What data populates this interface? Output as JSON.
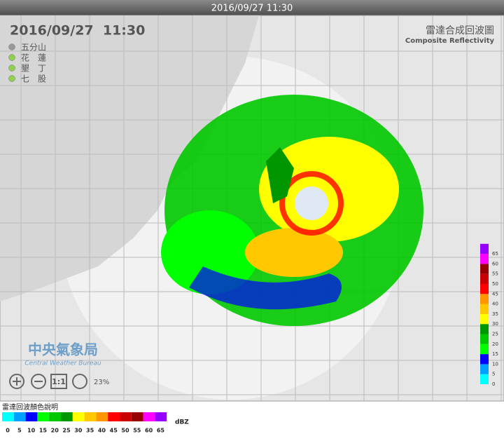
{
  "header": {
    "timestamp": "2016/09/27 11:30"
  },
  "map": {
    "datetime": "2016/09/27  11:30",
    "title": "雷達合成回波圖",
    "subtitle": "Composite Reflectivity"
  },
  "stations": [
    {
      "name": "五分山",
      "color": "#9a9a9a"
    },
    {
      "name": "花　蓮",
      "color": "#8fd14f"
    },
    {
      "name": "墾　丁",
      "color": "#8fd14f"
    },
    {
      "name": "七　股",
      "color": "#8fd14f"
    }
  ],
  "logo": {
    "name": "中央氣象局",
    "english": "Central Weather Bureau"
  },
  "controls": {
    "zoom_reset": "1:1",
    "opacity": "23%"
  },
  "legend": {
    "title": "雷達回波顏色說明",
    "unit": "dBZ",
    "levels": [
      0,
      5,
      10,
      15,
      20,
      25,
      30,
      35,
      40,
      45,
      50,
      55,
      60,
      65
    ],
    "colors": [
      "#00ffff",
      "#00a0ff",
      "#0000ff",
      "#00ff00",
      "#00c800",
      "#009600",
      "#ffff00",
      "#ffc800",
      "#ff9600",
      "#ff0000",
      "#c80000",
      "#960000",
      "#ff00ff",
      "#9600ff"
    ]
  }
}
